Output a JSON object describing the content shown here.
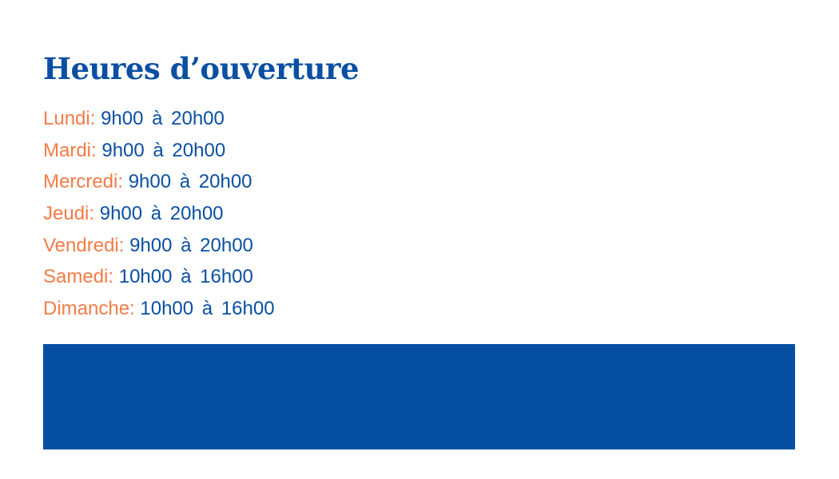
{
  "title": "Heures d’ouverture",
  "hours": [
    {
      "day": "Lundi:",
      "time": "9h00 à 20h00"
    },
    {
      "day": "Mardi:",
      "time": "9h00 à 20h00"
    },
    {
      "day": "Mercredi:",
      "time": "9h00 à 20h00"
    },
    {
      "day": "Jeudi:",
      "time": "9h00 à 20h00"
    },
    {
      "day": "Vendredi:",
      "time": "9h00 à 20h00"
    },
    {
      "day": "Samedi:",
      "time": "10h00 à 16h00"
    },
    {
      "day": "Dimanche:",
      "time": "10h00 à 16h00"
    }
  ],
  "colors": {
    "primary": "#0a4fa3",
    "accent": "#f47b46",
    "block": "#074fa3"
  }
}
